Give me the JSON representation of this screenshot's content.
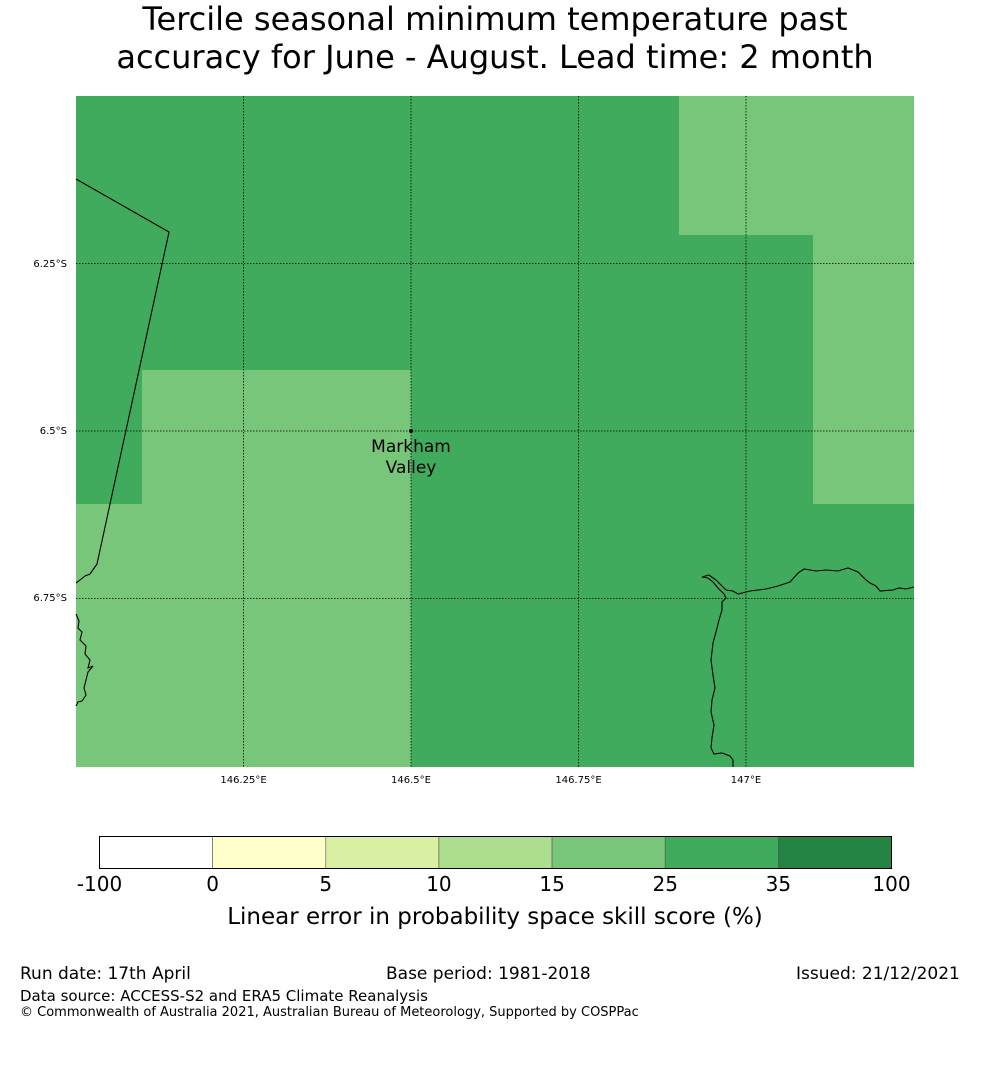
{
  "title": {
    "line1": "Tercile seasonal minimum temperature past",
    "line2": "accuracy for June - August. Lead time: 2 month"
  },
  "map": {
    "location_label_line1": "Markham",
    "location_label_line2": "Valley",
    "lon_ticks": [
      "146.25°E",
      "146.5°E",
      "146.75°E",
      "147°E"
    ],
    "lat_ticks": [
      "6.25°S",
      "6.5°S",
      "6.75°S"
    ],
    "colors": {
      "skill_25_35": "#41ab5d",
      "skill_15_25": "#78c679",
      "coastline": "#000000",
      "gridline": "#000000"
    }
  },
  "colorbar": {
    "tick_labels": [
      "-100",
      "0",
      "5",
      "10",
      "15",
      "25",
      "35",
      "100"
    ],
    "colors": [
      "#ffffff",
      "#ffffcc",
      "#d9f0a3",
      "#addd8e",
      "#78c679",
      "#41ab5d",
      "#238443"
    ],
    "label": "Linear error in probability space skill score (%)"
  },
  "footer": {
    "run_date": "Run date: 17th April",
    "base_period": "Base period: 1981-2018",
    "issued": "Issued: 21/12/2021",
    "data_source": "Data source: ACCESS-S2 and ERA5 Climate Reanalysis",
    "copyright": "© Commonwealth of Australia 2021, Australian Bureau of Meteorology, Supported by COSPPac"
  }
}
